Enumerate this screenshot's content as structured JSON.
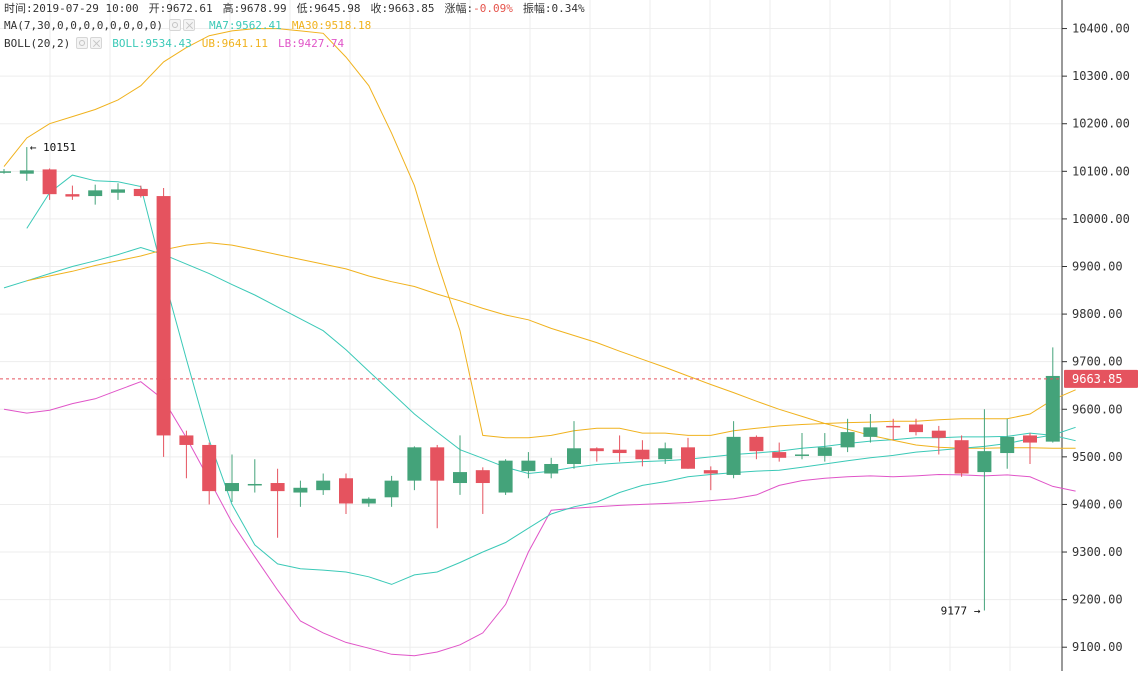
{
  "legend": {
    "ohlc": [
      {
        "label": "时间:",
        "value": "2019-07-29 10:00",
        "value_color": "#333333"
      },
      {
        "label": "开:",
        "value": "9672.61",
        "value_color": "#333333"
      },
      {
        "label": "高:",
        "value": "9678.99",
        "value_color": "#333333"
      },
      {
        "label": "低:",
        "value": "9645.98",
        "value_color": "#333333"
      },
      {
        "label": "收:",
        "value": "9663.85",
        "value_color": "#333333"
      },
      {
        "label": "涨幅:",
        "value": "-0.09%",
        "value_color": "#e5534b"
      },
      {
        "label": "振幅:",
        "value": "0.34%",
        "value_color": "#333333"
      }
    ],
    "ma_params": "MA(7,30,0,0,0,0,0,0,0,0)",
    "ma7": "MA7:9562.41",
    "ma30": "MA30:9518.18",
    "boll_params": "BOLL(20,2)",
    "boll_mid": "BOLL:9534.43",
    "boll_ub": "UB:9641.11",
    "boll_lb": "LB:9427.74"
  },
  "colors": {
    "up": "#44a37a",
    "down": "#e5535f",
    "ma7": "#3bc9b7",
    "ma30": "#f0b21e",
    "boll_mid": "#3bc9b7",
    "boll_ub": "#f0b21e",
    "boll_lb": "#e055c8",
    "price_line": "#e5535f",
    "grid": "#ededed",
    "axis_text": "#333333"
  },
  "chart_data": {
    "type": "candlestick",
    "ylim": [
      9050,
      10460
    ],
    "y_ticks": [
      "9100.00",
      "9200.00",
      "9300.00",
      "9400.00",
      "9500.00",
      "9600.00",
      "9700.00",
      "9800.00",
      "9900.00",
      "10000.00",
      "10100.00",
      "10200.00",
      "10300.00",
      "10400.00"
    ],
    "last_price": "9663.85",
    "annotations": {
      "high": "10151",
      "low": "9177"
    },
    "candles": [
      {
        "o": 10100,
        "h": 10105,
        "l": 10095,
        "c": 10100
      },
      {
        "o": 10095,
        "h": 10151,
        "l": 10080,
        "c": 10102
      },
      {
        "o": 10104,
        "h": 10106,
        "l": 10040,
        "c": 10052
      },
      {
        "o": 10052,
        "h": 10070,
        "l": 10040,
        "c": 10047
      },
      {
        "o": 10048,
        "h": 10072,
        "l": 10030,
        "c": 10060
      },
      {
        "o": 10055,
        "h": 10075,
        "l": 10040,
        "c": 10062
      },
      {
        "o": 10063,
        "h": 10070,
        "l": 10045,
        "c": 10048
      },
      {
        "o": 10048,
        "h": 10065,
        "l": 9500,
        "c": 9545
      },
      {
        "o": 9545,
        "h": 9555,
        "l": 9455,
        "c": 9525
      },
      {
        "o": 9525,
        "h": 9530,
        "l": 9400,
        "c": 9428
      },
      {
        "o": 9428,
        "h": 9505,
        "l": 9405,
        "c": 9445
      },
      {
        "o": 9443,
        "h": 9495,
        "l": 9425,
        "c": 9443
      },
      {
        "o": 9445,
        "h": 9475,
        "l": 9330,
        "c": 9428
      },
      {
        "o": 9425,
        "h": 9450,
        "l": 9395,
        "c": 9435
      },
      {
        "o": 9430,
        "h": 9465,
        "l": 9420,
        "c": 9450
      },
      {
        "o": 9455,
        "h": 9465,
        "l": 9380,
        "c": 9402
      },
      {
        "o": 9402,
        "h": 9415,
        "l": 9395,
        "c": 9412
      },
      {
        "o": 9415,
        "h": 9460,
        "l": 9395,
        "c": 9450
      },
      {
        "o": 9450,
        "h": 9522,
        "l": 9430,
        "c": 9520
      },
      {
        "o": 9520,
        "h": 9525,
        "l": 9350,
        "c": 9450
      },
      {
        "o": 9445,
        "h": 9545,
        "l": 9420,
        "c": 9468
      },
      {
        "o": 9472,
        "h": 9478,
        "l": 9380,
        "c": 9445
      },
      {
        "o": 9425,
        "h": 9495,
        "l": 9420,
        "c": 9492
      },
      {
        "o": 9470,
        "h": 9510,
        "l": 9455,
        "c": 9492
      },
      {
        "o": 9465,
        "h": 9498,
        "l": 9455,
        "c": 9485
      },
      {
        "o": 9485,
        "h": 9575,
        "l": 9475,
        "c": 9518
      },
      {
        "o": 9518,
        "h": 9520,
        "l": 9490,
        "c": 9512
      },
      {
        "o": 9515,
        "h": 9545,
        "l": 9490,
        "c": 9508
      },
      {
        "o": 9515,
        "h": 9535,
        "l": 9480,
        "c": 9495
      },
      {
        "o": 9495,
        "h": 9530,
        "l": 9485,
        "c": 9518
      },
      {
        "o": 9520,
        "h": 9540,
        "l": 9475,
        "c": 9475
      },
      {
        "o": 9472,
        "h": 9480,
        "l": 9430,
        "c": 9465
      },
      {
        "o": 9462,
        "h": 9575,
        "l": 9455,
        "c": 9542
      },
      {
        "o": 9542,
        "h": 9545,
        "l": 9495,
        "c": 9512
      },
      {
        "o": 9510,
        "h": 9530,
        "l": 9490,
        "c": 9498
      },
      {
        "o": 9503,
        "h": 9550,
        "l": 9495,
        "c": 9505
      },
      {
        "o": 9502,
        "h": 9550,
        "l": 9490,
        "c": 9520
      },
      {
        "o": 9520,
        "h": 9580,
        "l": 9510,
        "c": 9552
      },
      {
        "o": 9542,
        "h": 9590,
        "l": 9530,
        "c": 9562
      },
      {
        "o": 9565,
        "h": 9580,
        "l": 9535,
        "c": 9562
      },
      {
        "o": 9568,
        "h": 9580,
        "l": 9545,
        "c": 9552
      },
      {
        "o": 9555,
        "h": 9565,
        "l": 9505,
        "c": 9540
      },
      {
        "o": 9535,
        "h": 9545,
        "l": 9458,
        "c": 9465
      },
      {
        "o": 9468,
        "h": 9600,
        "l": 9177,
        "c": 9512
      },
      {
        "o": 9508,
        "h": 9580,
        "l": 9475,
        "c": 9542
      },
      {
        "o": 9545,
        "h": 9550,
        "l": 9485,
        "c": 9530
      },
      {
        "o": 9532,
        "h": 9730,
        "l": 9530,
        "c": 9670
      },
      {
        "o": 9672,
        "h": 9679,
        "l": 9646,
        "c": 9664
      }
    ],
    "ma7": [
      null,
      9980,
      10055,
      10092,
      10080,
      10078,
      10068,
      9880,
      9705,
      9535,
      9400,
      9315,
      9275,
      9265,
      9262,
      9258,
      9248,
      9232,
      9252,
      9258,
      9278,
      9300,
      9320,
      9350,
      9380,
      9395,
      9405,
      9425,
      9440,
      9448,
      9458,
      9463,
      9467,
      9470,
      9472,
      9478,
      9485,
      9492,
      9498,
      9503,
      9510,
      9514,
      9518,
      9522,
      9528,
      9538,
      9546,
      9562
    ],
    "ma30": [
      null,
      9870,
      9880,
      9890,
      9902,
      9912,
      9922,
      9935,
      9945,
      9950,
      9945,
      9935,
      9925,
      9915,
      9905,
      9895,
      9880,
      9868,
      9858,
      9842,
      9828,
      9812,
      9798,
      9788,
      9770,
      9755,
      9740,
      9722,
      9705,
      9688,
      9670,
      9652,
      9635,
      9617,
      9600,
      9585,
      9570,
      9558,
      9545,
      9535,
      9525,
      9520,
      9518,
      9518,
      9519,
      9519,
      9518,
      9518
    ],
    "boll_mid": [
      9855,
      9870,
      9885,
      9900,
      9912,
      9925,
      9940,
      9925,
      9905,
      9885,
      9862,
      9840,
      9815,
      9790,
      9765,
      9725,
      9680,
      9635,
      9590,
      9552,
      9515,
      9497,
      9478,
      9465,
      9470,
      9478,
      9484,
      9487,
      9490,
      9492,
      9495,
      9500,
      9505,
      9508,
      9512,
      9518,
      9522,
      9528,
      9533,
      9536,
      9540,
      9540,
      9542,
      9542,
      9543,
      9550,
      9545,
      9534
    ],
    "boll_ub": [
      9815,
      9825,
      9830,
      9840,
      9852,
      9865,
      9880,
      9872,
      9860,
      9848,
      9838,
      9825,
      9812,
      9800,
      9785,
      9770,
      9758,
      9745,
      9730,
      9715,
      9698,
      9680,
      9664,
      9648,
      9640,
      9600,
      9560,
      9540,
      9530,
      9520,
      9515,
      9505,
      9498,
      9492,
      9488,
      9485,
      9483,
      9483,
      9484,
      9487,
      9490,
      9493,
      9495,
      9500,
      9505,
      9510,
      9515,
      9522
    ],
    "boll_ub_upper": [
      10110,
      10170,
      10200,
      10215,
      10230,
      10250,
      10280,
      10330,
      10360,
      10385,
      10395,
      10400,
      10400,
      10395,
      10390,
      10340,
      10280,
      10180,
      10070,
      9910,
      9765,
      9545,
      9540,
      9540,
      9545,
      9555,
      9560,
      9560,
      9550,
      9550,
      9545,
      9545,
      9555,
      9560,
      9565,
      9568,
      9570,
      9572,
      9573,
      9575,
      9575,
      9578,
      9580,
      9580,
      9580,
      9590,
      9620,
      9641
    ],
    "boll_lb": [
      9600,
      9592,
      9598,
      9612,
      9622,
      9640,
      9658,
      9620,
      9540,
      9452,
      9362,
      9290,
      9220,
      9155,
      9130,
      9110,
      9098,
      9085,
      9082,
      9090,
      9105,
      9130,
      9190,
      9300,
      9388,
      9392,
      9395,
      9398,
      9400,
      9402,
      9404,
      9408,
      9412,
      9420,
      9440,
      9450,
      9455,
      9458,
      9460,
      9458,
      9460,
      9463,
      9462,
      9460,
      9462,
      9458,
      9438,
      9428
    ]
  }
}
